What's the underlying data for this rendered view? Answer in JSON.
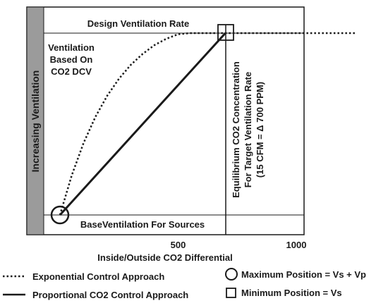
{
  "chart_data": {
    "type": "line",
    "title": "",
    "xlabel": "Inside/Outside CO2 Differential",
    "ylabel": "Increasing Ventilation",
    "xlim": [
      0,
      1250
    ],
    "ylim": [
      0,
      1
    ],
    "x_ticks": [
      500,
      1000
    ],
    "series": [
      {
        "name": "Exponential Control Approach",
        "style": "dotted",
        "x": [
          0,
          50,
          100,
          150,
          200,
          250,
          300,
          350,
          400,
          450,
          500,
          550,
          600,
          650,
          700,
          750,
          800,
          850,
          1250
        ],
        "y": [
          0.0,
          0.219,
          0.396,
          0.54,
          0.656,
          0.75,
          0.826,
          0.886,
          0.934,
          0.969,
          0.994,
          1.0,
          1.0,
          1.0,
          1.0,
          1.0,
          1.0,
          1.0,
          1.0
        ]
      },
      {
        "name": "Proportional CO2 Control Approach",
        "style": "solid",
        "x": [
          0,
          700
        ],
        "y": [
          0.0,
          1.0
        ]
      }
    ],
    "annotations": {
      "design_rate": "Design Ventilation Rate",
      "dcv": [
        "Ventilation",
        "Based On",
        "CO2 DCV"
      ],
      "equilibrium": [
        "Equilibrium CO2 Concentration",
        "For Target Ventilation Rate",
        "(15 CFM = Δ 700 PPM)"
      ],
      "base": "BaseVentilation For Sources"
    },
    "legend": {
      "exponential": "Exponential Control Approach",
      "proportional": "Proportional CO2 Control Approach",
      "maximum": "Maximum Position = Vs + Vp",
      "minimum": "Minimum Position = Vs"
    }
  }
}
